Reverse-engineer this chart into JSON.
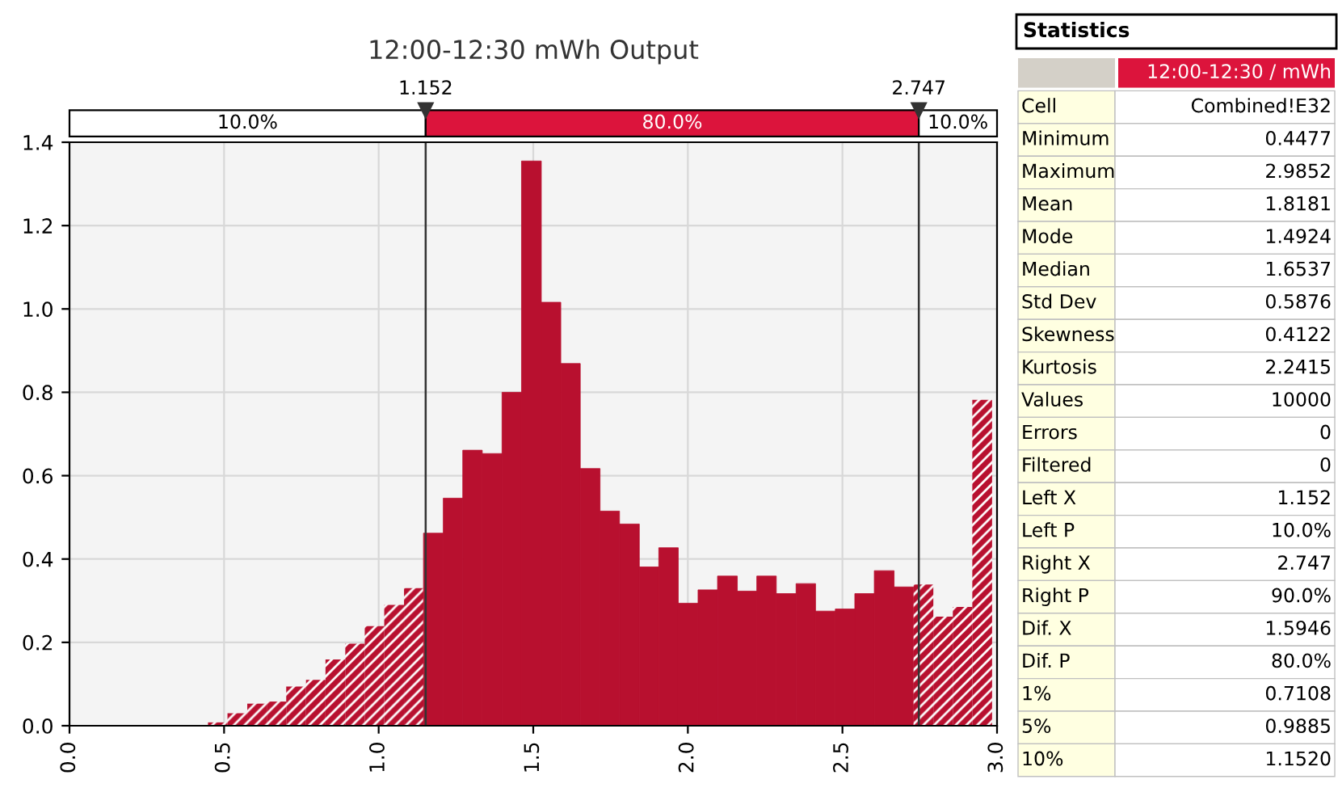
{
  "chart_data": [
    {
      "type": "histogram",
      "title": "12:00-12:30 mWh Output",
      "color": "#b8102f",
      "bins": [
        0.448,
        0.511,
        0.575,
        0.638,
        0.701,
        0.765,
        0.828,
        0.892,
        0.955,
        1.018,
        1.082,
        1.145,
        1.209,
        1.272,
        1.335,
        1.399,
        1.462,
        1.526,
        1.589,
        1.652,
        1.716,
        1.779,
        1.843,
        1.906,
        1.969,
        2.033,
        2.096,
        2.16,
        2.223,
        2.286,
        2.35,
        2.413,
        2.477,
        2.54,
        2.603,
        2.667,
        2.73,
        2.794,
        2.857,
        2.92,
        2.984
      ],
      "values": [
        0.008,
        0.03,
        0.053,
        0.058,
        0.094,
        0.11,
        0.159,
        0.197,
        0.239,
        0.29,
        0.33,
        0.462,
        0.546,
        0.661,
        0.653,
        0.8,
        1.355,
        1.016,
        0.869,
        0.617,
        0.515,
        0.484,
        0.381,
        0.427,
        0.294,
        0.326,
        0.359,
        0.323,
        0.359,
        0.317,
        0.341,
        0.275,
        0.28,
        0.317,
        0.372,
        0.333,
        0.339,
        0.262,
        0.285,
        0.782
      ],
      "xlim": [
        0,
        3
      ],
      "xticks": [
        {
          "value": 0,
          "label": "0.0"
        },
        0.5,
        {
          "value": 1,
          "label": "1.0"
        },
        1.5,
        {
          "value": 2,
          "label": "2.0"
        },
        2.5,
        {
          "value": 3,
          "label": "3.0"
        }
      ],
      "ylim": [
        0,
        1.4
      ],
      "yticks": [
        {
          "value": 0,
          "label": "0.0"
        },
        0.2,
        0.4,
        0.6,
        0.8,
        {
          "value": 1,
          "label": "1.0"
        },
        1.2,
        1.4
      ],
      "grid": true,
      "ref_lines": [
        {
          "axis": "x",
          "value": 1.152,
          "label": "1.152"
        },
        {
          "axis": "x",
          "value": 2.747,
          "label": "2.747"
        }
      ],
      "annotations": [
        "10.0%",
        "80.0%",
        "10.0%"
      ]
    },
    {
      "type": "other",
      "title": "Statistics",
      "subtitle": "12:00-12:30 / mWh",
      "categories": [
        "Cell",
        "Minimum",
        "Maximum",
        "Mean",
        "Mode",
        "Median",
        "Std Dev",
        "Skewness",
        "Kurtosis",
        "Values",
        "Errors",
        "Filtered",
        "Left X",
        "Left P",
        "Right X",
        "Right P",
        "Dif. X",
        "Dif. P",
        "1%",
        "5%",
        "10%"
      ],
      "value_labels": [
        "Combined!E32",
        "0.4477",
        "2.9852",
        "1.8181",
        "1.4924",
        "1.6537",
        "0.5876",
        "0.4122",
        "2.2415",
        "10000",
        "0",
        "0",
        "1.152",
        "10.0%",
        "2.747",
        "90.0%",
        "1.5946",
        "80.0%",
        "0.7108",
        "0.9885",
        "1.1520"
      ]
    }
  ]
}
